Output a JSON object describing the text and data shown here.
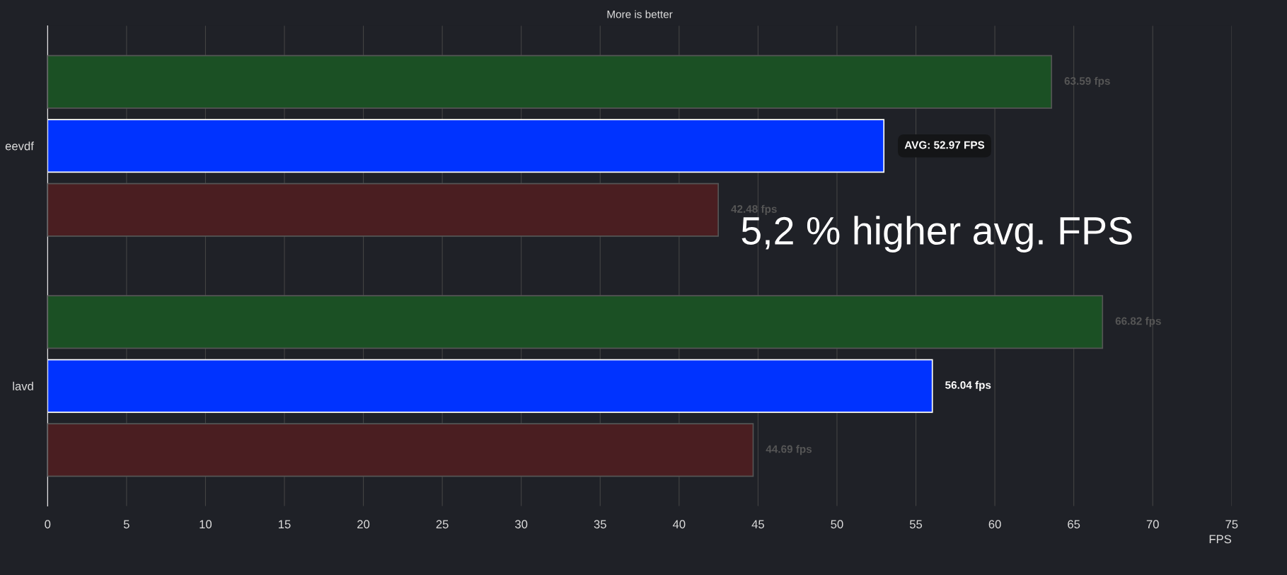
{
  "chart_data": {
    "type": "bar",
    "orientation": "horizontal",
    "title": "More is better",
    "xlabel": "FPS",
    "categories": [
      "eevdf",
      "lavd"
    ],
    "series": [
      {
        "color": "#1b5024",
        "values": [
          63.59,
          66.82
        ],
        "value_labels": [
          "63.59 fps",
          "66.82 fps"
        ]
      },
      {
        "color": "#0033ff",
        "values": [
          52.97,
          56.04
        ],
        "value_labels": [
          "AVG: 52.97 FPS",
          "56.04 fps"
        ]
      },
      {
        "color": "#4a1e21",
        "values": [
          42.48,
          44.69
        ],
        "value_labels": [
          "42.48 fps",
          "44.69 fps"
        ]
      }
    ],
    "xlim": [
      0,
      75
    ],
    "xticks": [
      0,
      5,
      10,
      15,
      20,
      25,
      30,
      35,
      40,
      45,
      50,
      55,
      60,
      65,
      70,
      75
    ],
    "grid": "x",
    "legend": false,
    "annotations": [
      "5,2 % higher avg. FPS"
    ]
  }
}
